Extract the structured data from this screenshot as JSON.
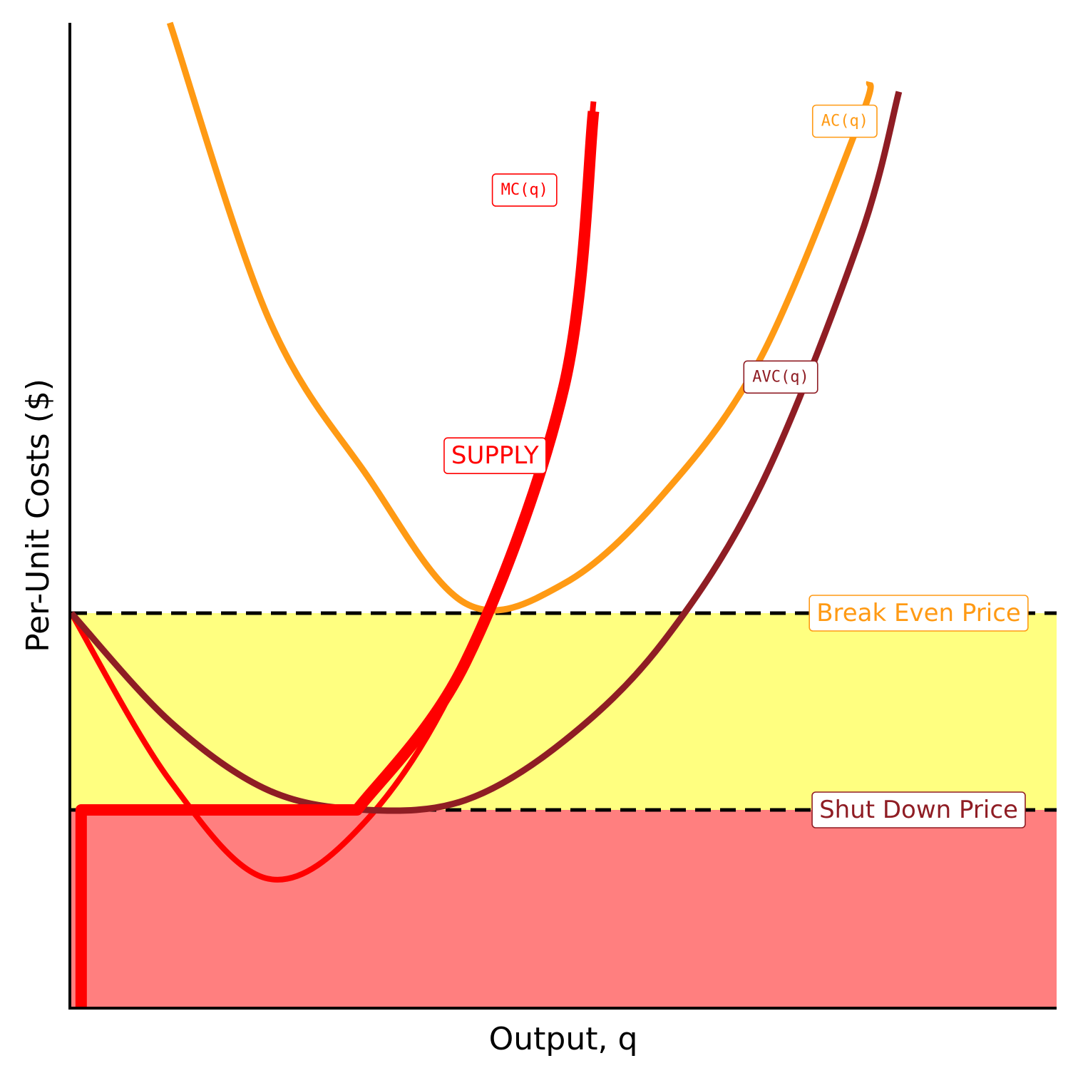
{
  "chart_data": {
    "type": "line",
    "xlabel": "Output, q",
    "ylabel": "Per-Unit Costs ($)",
    "xlim": [
      0,
      10
    ],
    "ylim": [
      0,
      10
    ],
    "grid": false,
    "legend": "none",
    "series": [
      {
        "name": "MC(q)",
        "color": "#ff0000",
        "points": [
          [
            0,
            4
          ],
          [
            1,
            2.3
          ],
          [
            2,
            1.3
          ],
          [
            3,
            1.9
          ],
          [
            4,
            3.5
          ],
          [
            5,
            6.3
          ],
          [
            5.3,
            9.2
          ]
        ]
      },
      {
        "name": "AC(q)",
        "color": "#ff9a14",
        "points": [
          [
            1,
            10
          ],
          [
            2,
            7
          ],
          [
            3,
            5.4
          ],
          [
            4,
            4.1
          ],
          [
            5,
            4.3
          ],
          [
            6,
            5.2
          ],
          [
            7,
            6.6
          ],
          [
            8,
            9
          ],
          [
            8.1,
            9.4
          ]
        ]
      },
      {
        "name": "AVC(q)",
        "color": "#8f1d24",
        "points": [
          [
            0,
            4
          ],
          [
            1,
            2.9
          ],
          [
            2,
            2.2
          ],
          [
            3,
            2
          ],
          [
            4,
            2.1
          ],
          [
            5,
            2.7
          ],
          [
            6,
            3.7
          ],
          [
            7,
            5.3
          ],
          [
            8,
            7.8
          ],
          [
            8.4,
            9.3
          ]
        ]
      },
      {
        "name": "SUPPLY",
        "color": "#ff0000",
        "points": [
          [
            0.1,
            0
          ],
          [
            0.1,
            2
          ],
          [
            2.9,
            2
          ],
          [
            4,
            3.5
          ],
          [
            5,
            6.3
          ],
          [
            5.3,
            9.1
          ]
        ]
      }
    ],
    "hlines": [
      {
        "name": "Break Even Price",
        "y": 4,
        "color": "#ff9a14",
        "style": "dashed"
      },
      {
        "name": "Shut Down Price",
        "y": 2,
        "color": "#8f1d24",
        "style": "dashed"
      }
    ],
    "regions": [
      {
        "name": "between-shutdown-and-breakeven",
        "y_from": 2,
        "y_to": 4,
        "color": "#ffff80"
      },
      {
        "name": "below-shutdown",
        "y_from": 0,
        "y_to": 2,
        "color": "#ff7f7f"
      }
    ],
    "annotations": [
      {
        "id": "mc",
        "text": "MC(q)",
        "x": 4.6,
        "y": 8.3,
        "color": "#ff0000"
      },
      {
        "id": "ac",
        "text": "AC(q)",
        "x": 7.85,
        "y": 9.0,
        "color": "#ff9a14"
      },
      {
        "id": "avc",
        "text": "AVC(q)",
        "x": 7.2,
        "y": 6.4,
        "color": "#8f1d24"
      },
      {
        "id": "supply",
        "text": "SUPPLY",
        "x": 4.3,
        "y": 5.6,
        "color": "#ff0000"
      },
      {
        "id": "breakeven",
        "text": "Break Even Price",
        "x": 8.6,
        "y": 4.0,
        "color": "#ff9a14"
      },
      {
        "id": "shutdown",
        "text": "Shut Down Price",
        "x": 8.6,
        "y": 2.0,
        "color": "#8f1d24"
      }
    ]
  }
}
